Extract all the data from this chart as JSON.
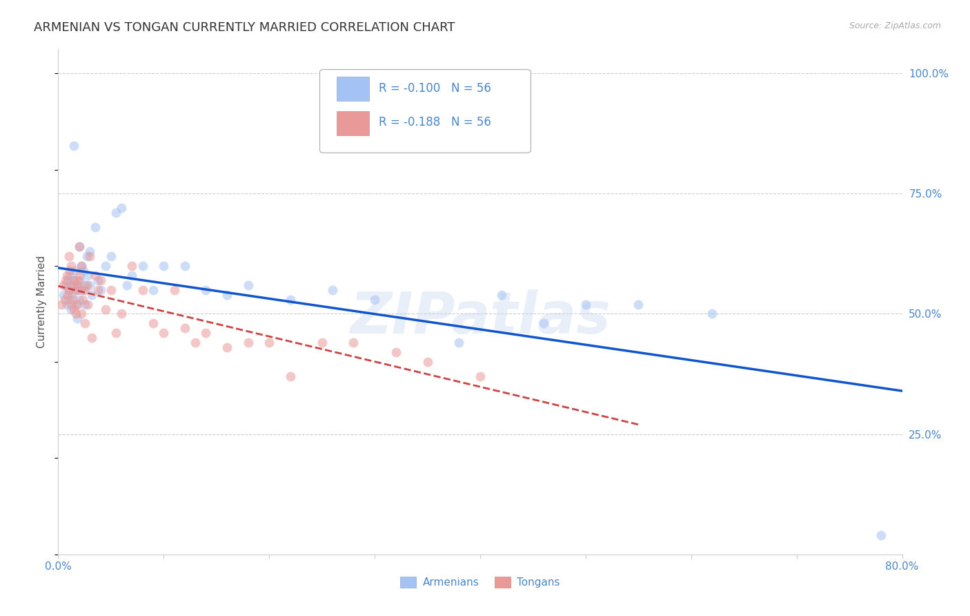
{
  "title": "ARMENIAN VS TONGAN CURRENTLY MARRIED CORRELATION CHART",
  "source": "Source: ZipAtlas.com",
  "ylabel": "Currently Married",
  "xlim": [
    0.0,
    0.8
  ],
  "ylim": [
    0.0,
    1.05
  ],
  "xticks": [
    0.0,
    0.1,
    0.2,
    0.3,
    0.4,
    0.5,
    0.6,
    0.7,
    0.8
  ],
  "xticklabels": [
    "0.0%",
    "",
    "",
    "",
    "",
    "",
    "",
    "",
    "80.0%"
  ],
  "yticks_right": [
    0.25,
    0.5,
    0.75,
    1.0
  ],
  "ytick_labels_right": [
    "25.0%",
    "50.0%",
    "75.0%",
    "100.0%"
  ],
  "r_armenian": -0.1,
  "n_armenian": 56,
  "r_tongan": -0.188,
  "n_tongan": 56,
  "color_armenian": "#a4c2f4",
  "color_tongan": "#ea9999",
  "line_color_armenian": "#1155cc",
  "line_color_tongan": "#cc4444",
  "legend_labels": [
    "Armenians",
    "Tongans"
  ],
  "watermark": "ZIPatlas",
  "armenian_x": [
    0.005,
    0.007,
    0.008,
    0.009,
    0.01,
    0.01,
    0.011,
    0.012,
    0.013,
    0.014,
    0.015,
    0.015,
    0.016,
    0.017,
    0.018,
    0.018,
    0.019,
    0.02,
    0.02,
    0.021,
    0.022,
    0.023,
    0.024,
    0.025,
    0.025,
    0.027,
    0.028,
    0.03,
    0.03,
    0.032,
    0.035,
    0.038,
    0.04,
    0.045,
    0.05,
    0.055,
    0.06,
    0.065,
    0.07,
    0.08,
    0.09,
    0.1,
    0.12,
    0.14,
    0.16,
    0.18,
    0.22,
    0.26,
    0.3,
    0.38,
    0.42,
    0.46,
    0.5,
    0.55,
    0.62,
    0.78
  ],
  "armenian_y": [
    0.54,
    0.56,
    0.52,
    0.57,
    0.55,
    0.53,
    0.58,
    0.51,
    0.54,
    0.57,
    0.85,
    0.56,
    0.59,
    0.52,
    0.55,
    0.49,
    0.56,
    0.64,
    0.53,
    0.57,
    0.6,
    0.55,
    0.59,
    0.56,
    0.52,
    0.62,
    0.58,
    0.56,
    0.63,
    0.54,
    0.68,
    0.57,
    0.55,
    0.6,
    0.62,
    0.71,
    0.72,
    0.56,
    0.58,
    0.6,
    0.55,
    0.6,
    0.6,
    0.55,
    0.54,
    0.56,
    0.53,
    0.55,
    0.53,
    0.44,
    0.54,
    0.48,
    0.52,
    0.52,
    0.5,
    0.04
  ],
  "tongan_x": [
    0.003,
    0.005,
    0.006,
    0.007,
    0.008,
    0.009,
    0.01,
    0.01,
    0.011,
    0.012,
    0.012,
    0.013,
    0.014,
    0.015,
    0.015,
    0.016,
    0.017,
    0.018,
    0.018,
    0.019,
    0.02,
    0.02,
    0.021,
    0.022,
    0.022,
    0.023,
    0.025,
    0.025,
    0.027,
    0.028,
    0.03,
    0.032,
    0.035,
    0.038,
    0.04,
    0.045,
    0.05,
    0.055,
    0.06,
    0.07,
    0.08,
    0.09,
    0.1,
    0.11,
    0.12,
    0.13,
    0.14,
    0.16,
    0.18,
    0.2,
    0.22,
    0.25,
    0.28,
    0.32,
    0.35,
    0.4
  ],
  "tongan_y": [
    0.52,
    0.56,
    0.53,
    0.57,
    0.58,
    0.54,
    0.62,
    0.55,
    0.59,
    0.6,
    0.52,
    0.56,
    0.53,
    0.57,
    0.51,
    0.55,
    0.5,
    0.56,
    0.52,
    0.57,
    0.64,
    0.58,
    0.55,
    0.6,
    0.5,
    0.53,
    0.55,
    0.48,
    0.56,
    0.52,
    0.62,
    0.45,
    0.58,
    0.55,
    0.57,
    0.51,
    0.55,
    0.46,
    0.5,
    0.6,
    0.55,
    0.48,
    0.46,
    0.55,
    0.47,
    0.44,
    0.46,
    0.43,
    0.44,
    0.44,
    0.37,
    0.44,
    0.44,
    0.42,
    0.4,
    0.37
  ],
  "grid_color": "#cccccc",
  "background_color": "#ffffff",
  "title_fontsize": 13,
  "axis_label_fontsize": 11,
  "tick_fontsize": 11,
  "scatter_alpha": 0.55,
  "scatter_size": 100
}
